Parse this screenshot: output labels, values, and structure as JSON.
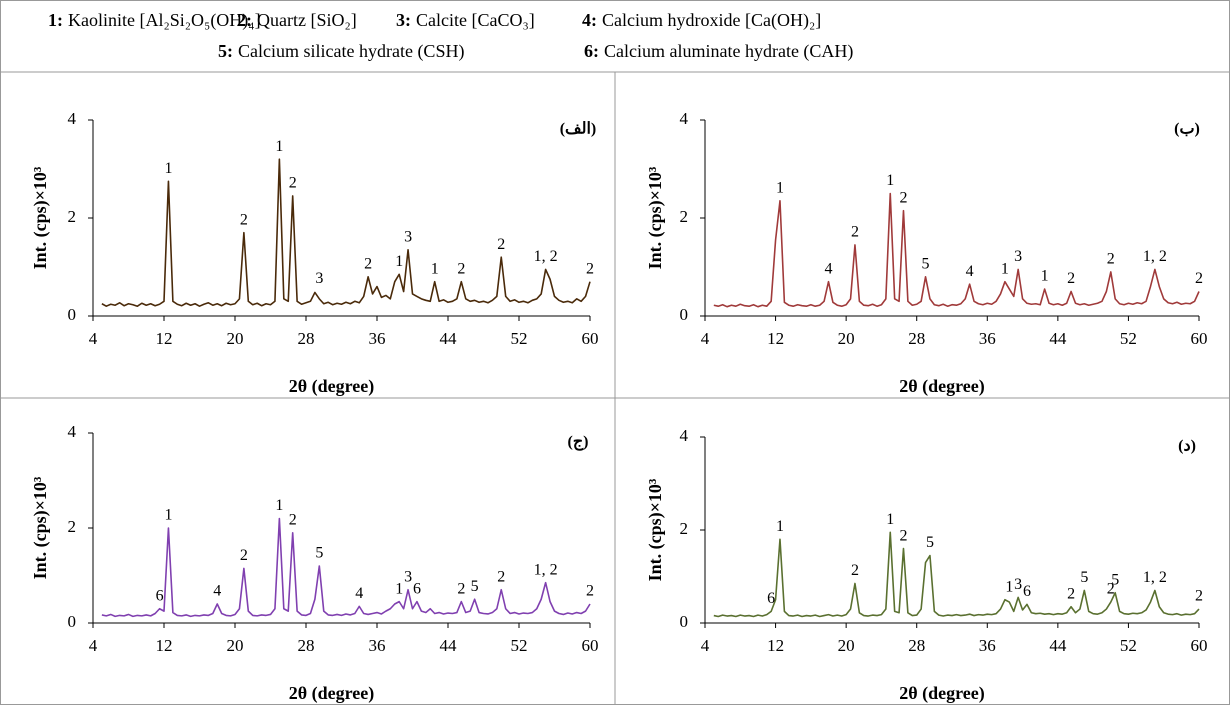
{
  "legend": [
    {
      "key": "1:",
      "text": "Kaolinite  [Al₂Si₂O₅(OH)₄]"
    },
    {
      "key": "2:",
      "text": "Quartz [SiO₂]"
    },
    {
      "key": "3:",
      "text": "Calcite [CaCO₃]"
    },
    {
      "key": "4:",
      "text": "Calcium hydroxide [Ca(OH)₂]"
    },
    {
      "key": "5:",
      "text": "Calcium silicate hydrate (CSH)"
    },
    {
      "key": "6:",
      "text": "Calcium aluminate hydrate (CAH)"
    }
  ],
  "chart_data": [
    {
      "type": "line",
      "label": "(الف)",
      "x_label": "2θ (degree)",
      "y_label": "Int.  (cps)×10³",
      "color": "#4a2a0a",
      "xlim": [
        4,
        60
      ],
      "xticks": [
        4,
        12,
        20,
        28,
        36,
        44,
        52,
        60
      ],
      "ylim": [
        0,
        4
      ],
      "yticks": [
        0,
        2,
        4
      ],
      "x": [
        5,
        5.5,
        6,
        6.5,
        7,
        7.5,
        8,
        8.5,
        9,
        9.5,
        10,
        10.5,
        11,
        11.5,
        12,
        12.5,
        13,
        13.5,
        14,
        14.5,
        15,
        15.5,
        16,
        16.5,
        17,
        17.5,
        18,
        18.5,
        19,
        19.5,
        20,
        20.5,
        21,
        21.5,
        22,
        22.5,
        23,
        23.5,
        24,
        24.5,
        25,
        25.5,
        26,
        26.5,
        27,
        27.5,
        28,
        28.5,
        29,
        29.5,
        30,
        30.5,
        31,
        31.5,
        32,
        32.5,
        33,
        33.5,
        34,
        34.5,
        35,
        35.5,
        36,
        36.5,
        37,
        37.5,
        38,
        38.5,
        39,
        39.5,
        40,
        40.5,
        41,
        41.5,
        42,
        42.5,
        43,
        43.5,
        44,
        44.5,
        45,
        45.5,
        46,
        46.5,
        47,
        47.5,
        48,
        48.5,
        49,
        49.5,
        50,
        50.5,
        51,
        51.5,
        52,
        52.5,
        53,
        53.5,
        54,
        54.5,
        55,
        55.5,
        56,
        56.5,
        57,
        57.5,
        58,
        58.5,
        59,
        59.5,
        60
      ],
      "values": [
        0.25,
        0.2,
        0.24,
        0.22,
        0.27,
        0.21,
        0.25,
        0.23,
        0.2,
        0.26,
        0.22,
        0.25,
        0.21,
        0.24,
        0.3,
        2.75,
        0.3,
        0.24,
        0.21,
        0.26,
        0.22,
        0.25,
        0.2,
        0.24,
        0.27,
        0.22,
        0.25,
        0.21,
        0.26,
        0.23,
        0.25,
        0.35,
        1.7,
        0.3,
        0.23,
        0.26,
        0.21,
        0.25,
        0.23,
        0.3,
        3.2,
        0.35,
        0.3,
        2.45,
        0.3,
        0.24,
        0.27,
        0.3,
        0.48,
        0.35,
        0.25,
        0.28,
        0.23,
        0.26,
        0.24,
        0.28,
        0.25,
        0.3,
        0.27,
        0.4,
        0.8,
        0.45,
        0.6,
        0.38,
        0.42,
        0.35,
        0.7,
        0.85,
        0.5,
        1.35,
        0.45,
        0.4,
        0.35,
        0.32,
        0.3,
        0.7,
        0.3,
        0.33,
        0.28,
        0.3,
        0.35,
        0.7,
        0.35,
        0.3,
        0.32,
        0.28,
        0.3,
        0.27,
        0.32,
        0.4,
        1.2,
        0.4,
        0.3,
        0.33,
        0.28,
        0.3,
        0.27,
        0.32,
        0.35,
        0.45,
        0.95,
        0.75,
        0.4,
        0.32,
        0.28,
        0.3,
        0.27,
        0.35,
        0.3,
        0.4,
        0.7
      ],
      "annotations": [
        {
          "text": "1",
          "x": 12.5,
          "y": 2.75
        },
        {
          "text": "2",
          "x": 21,
          "y": 1.7
        },
        {
          "text": "1",
          "x": 25,
          "y": 3.2
        },
        {
          "text": "2",
          "x": 26.5,
          "y": 2.45
        },
        {
          "text": "3",
          "x": 29.5,
          "y": 0.5
        },
        {
          "text": "2",
          "x": 35,
          "y": 0.8
        },
        {
          "text": "1",
          "x": 38.5,
          "y": 0.85
        },
        {
          "text": "3",
          "x": 39.5,
          "y": 1.35
        },
        {
          "text": "1",
          "x": 42.5,
          "y": 0.7
        },
        {
          "text": "2",
          "x": 45.5,
          "y": 0.7
        },
        {
          "text": "2",
          "x": 50,
          "y": 1.2
        },
        {
          "text": "1, 2",
          "x": 55,
          "y": 0.95
        },
        {
          "text": "2",
          "x": 60,
          "y": 0.7
        }
      ]
    },
    {
      "type": "line",
      "label": "(ب)",
      "x_label": "2θ (degree)",
      "y_label": "Int.  (cps)×10³",
      "color": "#a03a3a",
      "xlim": [
        4,
        60
      ],
      "xticks": [
        4,
        12,
        20,
        28,
        36,
        44,
        52,
        60
      ],
      "ylim": [
        0,
        4
      ],
      "yticks": [
        0,
        2,
        4
      ],
      "x": [
        5,
        5.5,
        6,
        6.5,
        7,
        7.5,
        8,
        8.5,
        9,
        9.5,
        10,
        10.5,
        11,
        11.5,
        12,
        12.5,
        13,
        13.5,
        14,
        14.5,
        15,
        15.5,
        16,
        16.5,
        17,
        17.5,
        18,
        18.5,
        19,
        19.5,
        20,
        20.5,
        21,
        21.5,
        22,
        22.5,
        23,
        23.5,
        24,
        24.5,
        25,
        25.5,
        26,
        26.5,
        27,
        27.5,
        28,
        28.5,
        29,
        29.5,
        30,
        30.5,
        31,
        31.5,
        32,
        32.5,
        33,
        33.5,
        34,
        34.5,
        35,
        35.5,
        36,
        36.5,
        37,
        37.5,
        38,
        38.5,
        39,
        39.5,
        40,
        40.5,
        41,
        41.5,
        42,
        42.5,
        43,
        43.5,
        44,
        44.5,
        45,
        45.5,
        46,
        46.5,
        47,
        47.5,
        48,
        48.5,
        49,
        49.5,
        50,
        50.5,
        51,
        51.5,
        52,
        52.5,
        53,
        53.5,
        54,
        54.5,
        55,
        55.5,
        56,
        56.5,
        57,
        57.5,
        58,
        58.5,
        59,
        59.5,
        60
      ],
      "values": [
        0.22,
        0.2,
        0.23,
        0.19,
        0.22,
        0.2,
        0.24,
        0.21,
        0.2,
        0.23,
        0.19,
        0.22,
        0.2,
        0.3,
        1.55,
        2.35,
        0.28,
        0.22,
        0.2,
        0.23,
        0.21,
        0.2,
        0.23,
        0.2,
        0.22,
        0.3,
        0.7,
        0.28,
        0.22,
        0.2,
        0.23,
        0.35,
        1.45,
        0.3,
        0.22,
        0.21,
        0.24,
        0.2,
        0.23,
        0.35,
        2.5,
        0.35,
        0.3,
        2.15,
        0.3,
        0.22,
        0.24,
        0.3,
        0.8,
        0.35,
        0.23,
        0.21,
        0.24,
        0.2,
        0.23,
        0.22,
        0.25,
        0.35,
        0.65,
        0.3,
        0.25,
        0.23,
        0.26,
        0.24,
        0.3,
        0.45,
        0.7,
        0.55,
        0.4,
        0.95,
        0.35,
        0.26,
        0.24,
        0.25,
        0.23,
        0.55,
        0.26,
        0.23,
        0.25,
        0.22,
        0.26,
        0.5,
        0.26,
        0.23,
        0.25,
        0.22,
        0.24,
        0.26,
        0.3,
        0.5,
        0.9,
        0.35,
        0.25,
        0.23,
        0.26,
        0.24,
        0.27,
        0.25,
        0.3,
        0.6,
        0.95,
        0.6,
        0.35,
        0.27,
        0.25,
        0.28,
        0.24,
        0.26,
        0.25,
        0.3,
        0.5
      ],
      "annotations": [
        {
          "text": "1",
          "x": 12.5,
          "y": 2.35
        },
        {
          "text": "4",
          "x": 18,
          "y": 0.7
        },
        {
          "text": "2",
          "x": 21,
          "y": 1.45
        },
        {
          "text": "1",
          "x": 25,
          "y": 2.5
        },
        {
          "text": "2",
          "x": 26.5,
          "y": 2.15
        },
        {
          "text": "5",
          "x": 29,
          "y": 0.8
        },
        {
          "text": "4",
          "x": 34,
          "y": 0.65
        },
        {
          "text": "1",
          "x": 38,
          "y": 0.7
        },
        {
          "text": "3",
          "x": 39.5,
          "y": 0.95
        },
        {
          "text": "1",
          "x": 42.5,
          "y": 0.55
        },
        {
          "text": "2",
          "x": 45.5,
          "y": 0.5
        },
        {
          "text": "2",
          "x": 50,
          "y": 0.9
        },
        {
          "text": "1, 2",
          "x": 55,
          "y": 0.95
        },
        {
          "text": "2",
          "x": 60,
          "y": 0.5
        }
      ]
    },
    {
      "type": "line",
      "label": "(ج)",
      "x_label": "2θ (degree)",
      "y_label": "Int.  (cps)×10³",
      "color": "#8040b0",
      "xlim": [
        4,
        60
      ],
      "xticks": [
        4,
        12,
        20,
        28,
        36,
        44,
        52,
        60
      ],
      "ylim": [
        0,
        4
      ],
      "yticks": [
        0,
        2,
        4
      ],
      "x": [
        5,
        5.5,
        6,
        6.5,
        7,
        7.5,
        8,
        8.5,
        9,
        9.5,
        10,
        10.5,
        11,
        11.5,
        12,
        12.5,
        13,
        13.5,
        14,
        14.5,
        15,
        15.5,
        16,
        16.5,
        17,
        17.5,
        18,
        18.5,
        19,
        19.5,
        20,
        20.5,
        21,
        21.5,
        22,
        22.5,
        23,
        23.5,
        24,
        24.5,
        25,
        25.5,
        26,
        26.5,
        27,
        27.5,
        28,
        28.5,
        29,
        29.5,
        30,
        30.5,
        31,
        31.5,
        32,
        32.5,
        33,
        33.5,
        34,
        34.5,
        35,
        35.5,
        36,
        36.5,
        37,
        37.5,
        38,
        38.5,
        39,
        39.5,
        40,
        40.5,
        41,
        41.5,
        42,
        42.5,
        43,
        43.5,
        44,
        44.5,
        45,
        45.5,
        46,
        46.5,
        47,
        47.5,
        48,
        48.5,
        49,
        49.5,
        50,
        50.5,
        51,
        51.5,
        52,
        52.5,
        53,
        53.5,
        54,
        54.5,
        55,
        55.5,
        56,
        56.5,
        57,
        57.5,
        58,
        58.5,
        59,
        59.5,
        60
      ],
      "values": [
        0.17,
        0.15,
        0.18,
        0.14,
        0.16,
        0.15,
        0.18,
        0.14,
        0.16,
        0.15,
        0.17,
        0.15,
        0.2,
        0.3,
        0.25,
        2.0,
        0.22,
        0.16,
        0.15,
        0.17,
        0.14,
        0.16,
        0.15,
        0.17,
        0.16,
        0.2,
        0.4,
        0.2,
        0.16,
        0.15,
        0.18,
        0.3,
        1.15,
        0.25,
        0.16,
        0.15,
        0.17,
        0.16,
        0.18,
        0.3,
        2.2,
        0.3,
        0.25,
        1.9,
        0.25,
        0.17,
        0.16,
        0.2,
        0.5,
        1.2,
        0.25,
        0.17,
        0.16,
        0.18,
        0.16,
        0.19,
        0.17,
        0.2,
        0.35,
        0.2,
        0.18,
        0.2,
        0.22,
        0.19,
        0.25,
        0.3,
        0.4,
        0.45,
        0.3,
        0.7,
        0.3,
        0.45,
        0.25,
        0.22,
        0.3,
        0.2,
        0.22,
        0.19,
        0.21,
        0.2,
        0.22,
        0.45,
        0.22,
        0.25,
        0.5,
        0.22,
        0.2,
        0.19,
        0.22,
        0.3,
        0.7,
        0.3,
        0.2,
        0.22,
        0.19,
        0.21,
        0.2,
        0.22,
        0.3,
        0.5,
        0.85,
        0.45,
        0.25,
        0.2,
        0.18,
        0.21,
        0.19,
        0.22,
        0.2,
        0.25,
        0.4
      ],
      "annotations": [
        {
          "text": "6",
          "x": 11.5,
          "y": 0.3
        },
        {
          "text": "1",
          "x": 12.5,
          "y": 2.0
        },
        {
          "text": "4",
          "x": 18,
          "y": 0.4
        },
        {
          "text": "2",
          "x": 21,
          "y": 1.15
        },
        {
          "text": "1",
          "x": 25,
          "y": 2.2
        },
        {
          "text": "2",
          "x": 26.5,
          "y": 1.9
        },
        {
          "text": "5",
          "x": 29.5,
          "y": 1.2
        },
        {
          "text": "4",
          "x": 34,
          "y": 0.35
        },
        {
          "text": "1",
          "x": 38.5,
          "y": 0.45
        },
        {
          "text": "3",
          "x": 39.5,
          "y": 0.7
        },
        {
          "text": "6",
          "x": 40.5,
          "y": 0.45
        },
        {
          "text": "2",
          "x": 45.5,
          "y": 0.45
        },
        {
          "text": "5",
          "x": 47,
          "y": 0.5
        },
        {
          "text": "2",
          "x": 50,
          "y": 0.7
        },
        {
          "text": "1, 2",
          "x": 55,
          "y": 0.85
        },
        {
          "text": "2",
          "x": 60,
          "y": 0.4
        }
      ]
    },
    {
      "type": "line",
      "label": "(د)",
      "x_label": "2θ (degree)",
      "y_label": "Int.  (cps)×10³",
      "color": "#5a7030",
      "xlim": [
        4,
        60
      ],
      "xticks": [
        4,
        12,
        20,
        28,
        36,
        44,
        52,
        60
      ],
      "ylim": [
        0,
        4
      ],
      "yticks": [
        0,
        2,
        4
      ],
      "x": [
        5,
        5.5,
        6,
        6.5,
        7,
        7.5,
        8,
        8.5,
        9,
        9.5,
        10,
        10.5,
        11,
        11.5,
        12,
        12.5,
        13,
        13.5,
        14,
        14.5,
        15,
        15.5,
        16,
        16.5,
        17,
        17.5,
        18,
        18.5,
        19,
        19.5,
        20,
        20.5,
        21,
        21.5,
        22,
        22.5,
        23,
        23.5,
        24,
        24.5,
        25,
        25.5,
        26,
        26.5,
        27,
        27.5,
        28,
        28.5,
        29,
        29.5,
        30,
        30.5,
        31,
        31.5,
        32,
        32.5,
        33,
        33.5,
        34,
        34.5,
        35,
        35.5,
        36,
        36.5,
        37,
        37.5,
        38,
        38.5,
        39,
        39.5,
        40,
        40.5,
        41,
        41.5,
        42,
        42.5,
        43,
        43.5,
        44,
        44.5,
        45,
        45.5,
        46,
        46.5,
        47,
        47.5,
        48,
        48.5,
        49,
        49.5,
        50,
        50.5,
        51,
        51.5,
        52,
        52.5,
        53,
        53.5,
        54,
        54.5,
        55,
        55.5,
        56,
        56.5,
        57,
        57.5,
        58,
        58.5,
        59,
        59.5,
        60
      ],
      "values": [
        0.16,
        0.14,
        0.17,
        0.15,
        0.16,
        0.14,
        0.17,
        0.15,
        0.16,
        0.14,
        0.17,
        0.15,
        0.18,
        0.25,
        0.5,
        1.8,
        0.25,
        0.16,
        0.15,
        0.17,
        0.14,
        0.16,
        0.15,
        0.17,
        0.14,
        0.16,
        0.18,
        0.15,
        0.17,
        0.15,
        0.18,
        0.3,
        0.85,
        0.22,
        0.16,
        0.15,
        0.17,
        0.16,
        0.18,
        0.3,
        1.95,
        0.25,
        0.22,
        1.6,
        0.22,
        0.16,
        0.17,
        0.3,
        1.3,
        1.45,
        0.25,
        0.17,
        0.15,
        0.17,
        0.16,
        0.18,
        0.16,
        0.17,
        0.19,
        0.16,
        0.18,
        0.17,
        0.19,
        0.18,
        0.2,
        0.3,
        0.5,
        0.45,
        0.25,
        0.55,
        0.28,
        0.4,
        0.22,
        0.2,
        0.21,
        0.19,
        0.2,
        0.18,
        0.2,
        0.19,
        0.22,
        0.35,
        0.22,
        0.3,
        0.7,
        0.25,
        0.2,
        0.19,
        0.22,
        0.3,
        0.45,
        0.65,
        0.25,
        0.2,
        0.19,
        0.21,
        0.2,
        0.22,
        0.28,
        0.45,
        0.7,
        0.35,
        0.22,
        0.19,
        0.18,
        0.2,
        0.17,
        0.19,
        0.18,
        0.2,
        0.3
      ],
      "annotations": [
        {
          "text": "6",
          "x": 11.5,
          "y": 0.25
        },
        {
          "text": "1",
          "x": 12.5,
          "y": 1.8
        },
        {
          "text": "2",
          "x": 21,
          "y": 0.85
        },
        {
          "text": "1",
          "x": 25,
          "y": 1.95
        },
        {
          "text": "2",
          "x": 26.5,
          "y": 1.6
        },
        {
          "text": "5",
          "x": 29.5,
          "y": 1.45
        },
        {
          "text": "1",
          "x": 38.5,
          "y": 0.5
        },
        {
          "text": "3",
          "x": 39.5,
          "y": 0.55
        },
        {
          "text": "6",
          "x": 40.5,
          "y": 0.4
        },
        {
          "text": "2",
          "x": 45.5,
          "y": 0.35
        },
        {
          "text": "5",
          "x": 47,
          "y": 0.7
        },
        {
          "text": "2",
          "x": 50,
          "y": 0.45
        },
        {
          "text": "5",
          "x": 50.5,
          "y": 0.65
        },
        {
          "text": "1, 2",
          "x": 55,
          "y": 0.7
        },
        {
          "text": "2",
          "x": 60,
          "y": 0.3
        }
      ]
    }
  ]
}
